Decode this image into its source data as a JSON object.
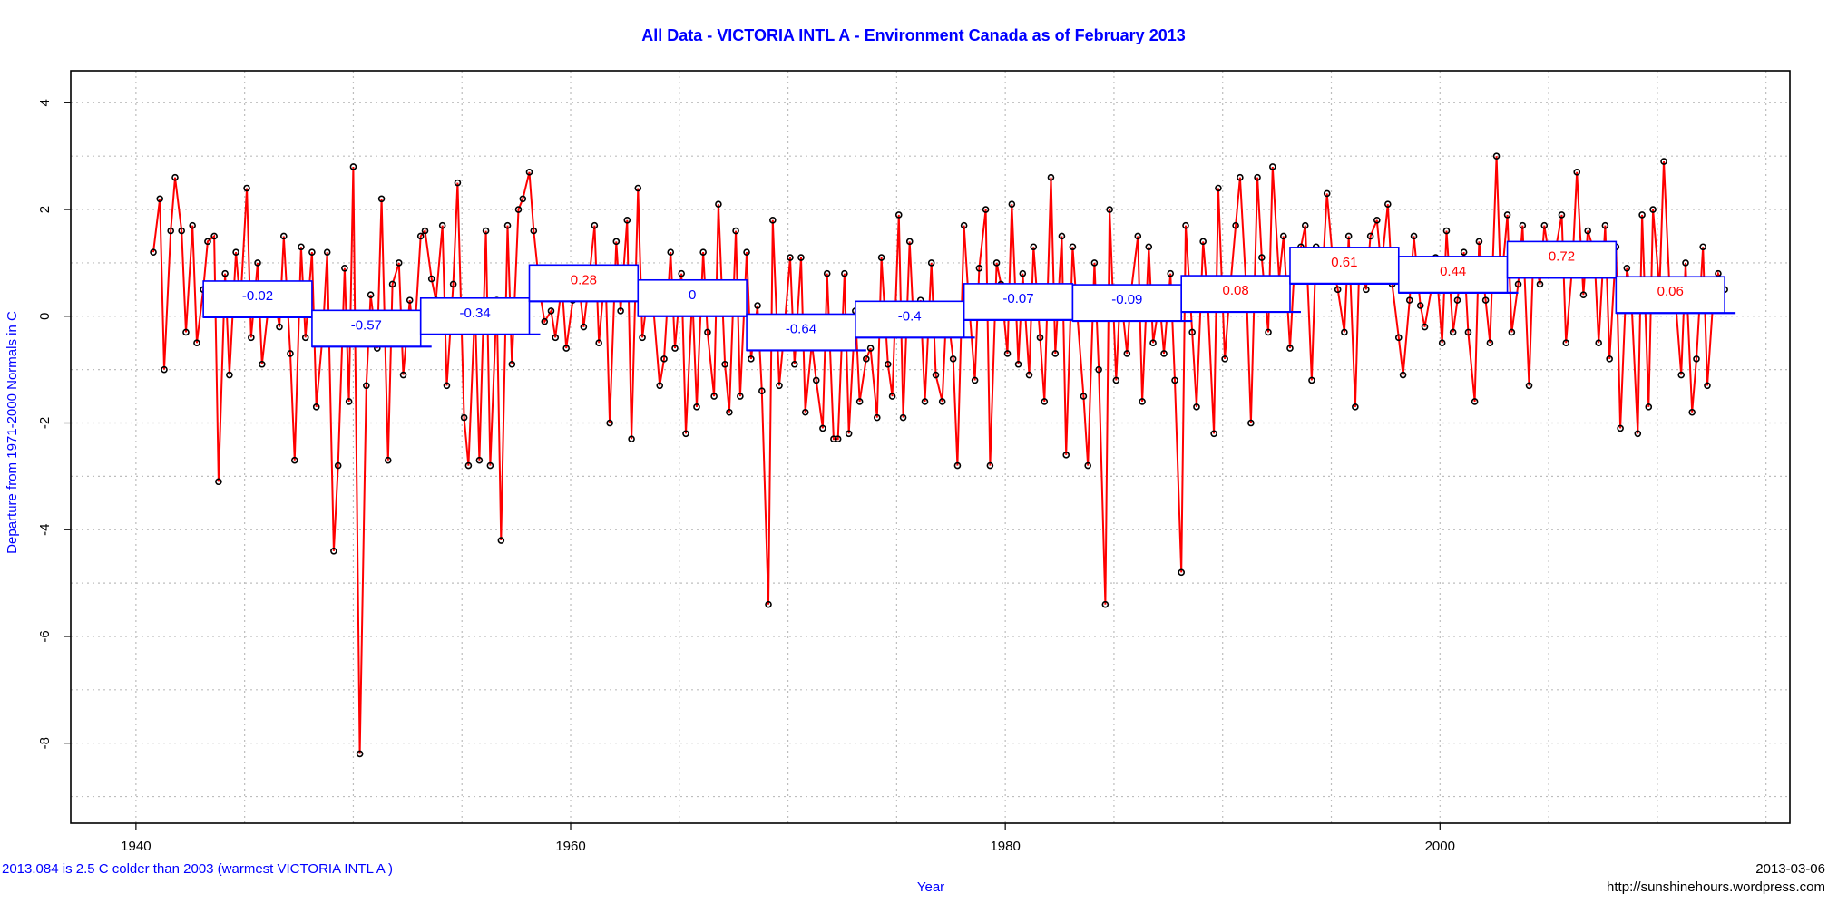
{
  "chart_data": {
    "type": "line",
    "title": "All Data - VICTORIA INTL A - Environment Canada as of  February 2013",
    "xlabel": "Year",
    "ylabel": "Departure from 1971-2000 Normals in C",
    "xlim": [
      1937,
      2016.1
    ],
    "ylim": [
      -9.5,
      4.6
    ],
    "x_ticks": [
      1940,
      1960,
      1980,
      2000
    ],
    "y_ticks": [
      4,
      2,
      0,
      -2,
      -4,
      -6,
      -8
    ],
    "grid": true,
    "colors": {
      "line": "#ff0000",
      "points": "#000000",
      "box_border": "#0000ff",
      "negative_label": "#0000ff",
      "positive_label": "#ff0000"
    },
    "series": [
      {
        "x": [
          1940.8,
          1941.1,
          1941.3,
          1941.6,
          1941.8,
          1942.1,
          1942.3,
          1942.6,
          1942.8,
          1943.1,
          1943.3,
          1943.6,
          1943.8,
          1944.1,
          1944.3,
          1944.6,
          1944.8,
          1945.1,
          1945.3,
          1945.6,
          1945.8,
          1946.1,
          1946.3,
          1946.6,
          1946.8,
          1947.1,
          1947.3,
          1947.6,
          1947.8,
          1948.1,
          1948.3,
          1948.6,
          1948.8,
          1949.1,
          1949.3,
          1949.6,
          1949.8,
          1950.0,
          1950.3,
          1950.6,
          1950.8,
          1951.1,
          1951.3,
          1951.6,
          1951.8,
          1952.1,
          1952.3,
          1952.6,
          1952.8,
          1953.1,
          1953.3,
          1953.6,
          1953.8,
          1954.1,
          1954.3,
          1954.6,
          1954.8,
          1955.1,
          1955.3,
          1955.6,
          1955.8,
          1956.1,
          1956.3,
          1956.6,
          1956.8,
          1957.1,
          1957.3,
          1957.6,
          1957.8,
          1958.1,
          1958.3,
          1958.6,
          1958.8,
          1959.1,
          1959.3,
          1959.6,
          1959.8,
          1960.1,
          1960.3,
          1960.6,
          1960.8,
          1961.1,
          1961.3,
          1961.6,
          1961.8,
          1962.1,
          1962.3,
          1962.6,
          1962.8,
          1963.1,
          1963.3,
          1963.6,
          1963.8,
          1964.1,
          1964.3,
          1964.6,
          1964.8,
          1965.1,
          1965.3,
          1965.6,
          1965.8,
          1966.1,
          1966.3,
          1966.6,
          1966.8,
          1967.1,
          1967.3,
          1967.6,
          1967.8,
          1968.1,
          1968.3,
          1968.6,
          1968.8,
          1969.1,
          1969.3,
          1969.6,
          1969.8,
          1970.1,
          1970.3,
          1970.6,
          1970.8,
          1971.1,
          1971.3,
          1971.6,
          1971.8,
          1972.1,
          1972.3,
          1972.6,
          1972.8,
          1973.1,
          1973.3,
          1973.6,
          1973.8,
          1974.1,
          1974.3,
          1974.6,
          1974.8,
          1975.1,
          1975.3,
          1975.6,
          1975.8,
          1976.1,
          1976.3,
          1976.6,
          1976.8,
          1977.1,
          1977.3,
          1977.6,
          1977.8,
          1978.1,
          1978.3,
          1978.6,
          1978.8,
          1979.1,
          1979.3,
          1979.6,
          1979.8,
          1980.1,
          1980.3,
          1980.6,
          1980.8,
          1981.1,
          1981.3,
          1981.6,
          1981.8,
          1982.1,
          1982.3,
          1982.6,
          1982.8,
          1983.1,
          1983.3,
          1983.6,
          1983.8,
          1984.1,
          1984.3,
          1984.6,
          1984.8,
          1985.1,
          1985.3,
          1985.6,
          1985.8,
          1986.1,
          1986.3,
          1986.6,
          1986.8,
          1987.1,
          1987.3,
          1987.6,
          1987.8,
          1988.1,
          1988.3,
          1988.6,
          1988.8,
          1989.1,
          1989.3,
          1989.6,
          1989.8,
          1990.1,
          1990.3,
          1990.6,
          1990.8,
          1991.1,
          1991.3,
          1991.6,
          1991.8,
          1992.1,
          1992.3,
          1992.6,
          1992.8,
          1993.1,
          1993.3,
          1993.6,
          1993.8,
          1994.1,
          1994.3,
          1994.6,
          1994.8,
          1995.1,
          1995.3,
          1995.6,
          1995.8,
          1996.1,
          1996.3,
          1996.6,
          1996.8,
          1997.1,
          1997.3,
          1997.6,
          1997.8,
          1998.1,
          1998.3,
          1998.6,
          1998.8,
          1999.1,
          1999.3,
          1999.6,
          1999.8,
          2000.1,
          2000.3,
          2000.6,
          2000.8,
          2001.1,
          2001.3,
          2001.6,
          2001.8,
          2002.1,
          2002.3,
          2002.6,
          2002.8,
          2003.1,
          2003.3,
          2003.6,
          2003.8,
          2004.1,
          2004.3,
          2004.6,
          2004.8,
          2005.1,
          2005.3,
          2005.6,
          2005.8,
          2006.1,
          2006.3,
          2006.6,
          2006.8,
          2007.1,
          2007.3,
          2007.6,
          2007.8,
          2008.1,
          2008.3,
          2008.6,
          2008.8,
          2009.1,
          2009.3,
          2009.6,
          2009.8,
          2010.1,
          2010.3,
          2010.6,
          2010.8,
          2011.1,
          2011.3,
          2011.6,
          2011.8,
          2012.1,
          2012.3,
          2012.6,
          2012.8,
          2013.1
        ],
        "values": [
          1.2,
          2.2,
          -1.0,
          1.6,
          2.6,
          1.6,
          -0.3,
          1.7,
          -0.5,
          0.5,
          1.4,
          1.5,
          -3.1,
          0.8,
          -1.1,
          1.2,
          0.2,
          2.4,
          -0.4,
          1.0,
          -0.9,
          0.2,
          0.6,
          -0.2,
          1.5,
          -0.7,
          -2.7,
          1.3,
          -0.4,
          1.2,
          -1.7,
          -0.3,
          1.2,
          -4.4,
          -2.8,
          0.9,
          -1.6,
          2.8,
          -8.2,
          -1.3,
          0.4,
          -0.6,
          2.2,
          -2.7,
          0.6,
          1.0,
          -1.1,
          0.3,
          -0.5,
          1.5,
          1.6,
          0.7,
          0.3,
          1.7,
          -1.3,
          0.6,
          2.5,
          -1.9,
          -2.8,
          0.2,
          -2.7,
          1.6,
          -2.8,
          0.3,
          -4.2,
          1.7,
          -0.9,
          2.0,
          2.2,
          2.7,
          1.6,
          0.4,
          -0.1,
          0.1,
          -0.4,
          0.6,
          -0.6,
          0.3,
          0.9,
          -0.2,
          0.5,
          1.7,
          -0.5,
          0.9,
          -2.0,
          1.4,
          0.1,
          1.8,
          -2.3,
          2.4,
          -0.4,
          0.6,
          0.2,
          -1.3,
          -0.8,
          1.2,
          -0.6,
          0.8,
          -2.2,
          0.4,
          -1.7,
          1.2,
          -0.3,
          -1.5,
          2.1,
          -0.9,
          -1.8,
          1.6,
          -1.5,
          1.2,
          -0.8,
          0.2,
          -1.4,
          -5.4,
          1.8,
          -1.3,
          -0.4,
          1.1,
          -0.9,
          1.1,
          -1.8,
          -0.5,
          -1.2,
          -2.1,
          0.8,
          -2.3,
          -2.3,
          0.8,
          -2.2,
          0.1,
          -1.6,
          -0.8,
          -0.6,
          -1.9,
          1.1,
          -0.9,
          -1.5,
          1.9,
          -1.9,
          1.4,
          -0.3,
          0.3,
          -1.6,
          1.0,
          -1.1,
          -1.6,
          0.2,
          -0.8,
          -2.8,
          1.7,
          0.4,
          -1.2,
          0.9,
          2.0,
          -2.8,
          1.0,
          0.6,
          -0.7,
          2.1,
          -0.9,
          0.8,
          -1.1,
          1.3,
          -0.4,
          -1.6,
          2.6,
          -0.7,
          1.5,
          -2.6,
          1.3,
          0.1,
          -1.5,
          -2.8,
          1.0,
          -1.0,
          -5.4,
          2.0,
          -1.2,
          0.5,
          -0.7,
          0.5,
          1.5,
          -1.6,
          1.3,
          -0.5,
          0.3,
          -0.7,
          0.8,
          -1.2,
          -4.8,
          1.7,
          -0.3,
          -1.7,
          1.4,
          0.4,
          -2.2,
          2.4,
          -0.8,
          0.3,
          1.7,
          2.6,
          0.4,
          -2.0,
          2.6,
          1.1,
          -0.3,
          2.8,
          0.7,
          1.5,
          -0.6,
          0.9,
          1.3,
          1.7,
          -1.2,
          1.3,
          0.8,
          2.3,
          0.9,
          0.5,
          -0.3,
          1.5,
          -1.7,
          1.2,
          0.5,
          1.5,
          1.8,
          0.9,
          2.1,
          0.6,
          -0.4,
          -1.1,
          0.3,
          1.5,
          0.2,
          -0.2,
          0.5,
          1.1,
          -0.5,
          1.6,
          -0.3,
          0.3,
          1.2,
          -0.3,
          -1.6,
          1.4,
          0.3,
          -0.5,
          3.0,
          0.5,
          1.9,
          -0.3,
          0.6,
          1.7,
          -1.3,
          1.2,
          0.6,
          1.7,
          0.9,
          1.2,
          1.9,
          -0.5,
          1.0,
          2.7,
          0.4,
          1.6,
          1.2,
          -0.5,
          1.7,
          -0.8,
          1.3,
          -2.1,
          0.9,
          0.4,
          -2.2,
          1.9,
          -1.7,
          2.0,
          0.5,
          2.9,
          0.2,
          0.5,
          -1.1,
          1.0,
          -1.8,
          -0.8,
          1.3,
          -1.3,
          0.5,
          0.8,
          0.5
        ]
      }
    ],
    "decade_means": [
      {
        "x0": 1943.1,
        "x1": 1948.1,
        "value": -0.02,
        "label": "-0.02"
      },
      {
        "x0": 1948.1,
        "x1": 1953.1,
        "value": -0.57,
        "label": "-0.57"
      },
      {
        "x0": 1953.1,
        "x1": 1958.1,
        "value": -0.34,
        "label": "-0.34"
      },
      {
        "x0": 1958.1,
        "x1": 1963.1,
        "value": 0.28,
        "label": "0.28"
      },
      {
        "x0": 1963.1,
        "x1": 1968.1,
        "value": 0.0,
        "label": "0"
      },
      {
        "x0": 1968.1,
        "x1": 1973.1,
        "value": -0.64,
        "label": "-0.64"
      },
      {
        "x0": 1973.1,
        "x1": 1978.1,
        "value": -0.4,
        "label": "-0.4"
      },
      {
        "x0": 1978.1,
        "x1": 1983.1,
        "value": -0.07,
        "label": "-0.07"
      },
      {
        "x0": 1983.1,
        "x1": 1988.1,
        "value": -0.09,
        "label": "-0.09"
      },
      {
        "x0": 1988.1,
        "x1": 1993.1,
        "value": 0.08,
        "label": "0.08"
      },
      {
        "x0": 1993.1,
        "x1": 1998.1,
        "value": 0.61,
        "label": "0.61"
      },
      {
        "x0": 1998.1,
        "x1": 2003.1,
        "value": 0.44,
        "label": "0.44"
      },
      {
        "x0": 2003.1,
        "x1": 2008.1,
        "value": 0.72,
        "label": "0.72"
      },
      {
        "x0": 2008.1,
        "x1": 2013.1,
        "value": 0.06,
        "label": "0.06"
      }
    ]
  },
  "footer": {
    "note": "2013.084 is 2.5 C  colder than 2003 (warmest VICTORIA INTL A )",
    "date": "2013-03-06",
    "url": "http://sunshinehours.wordpress.com"
  }
}
